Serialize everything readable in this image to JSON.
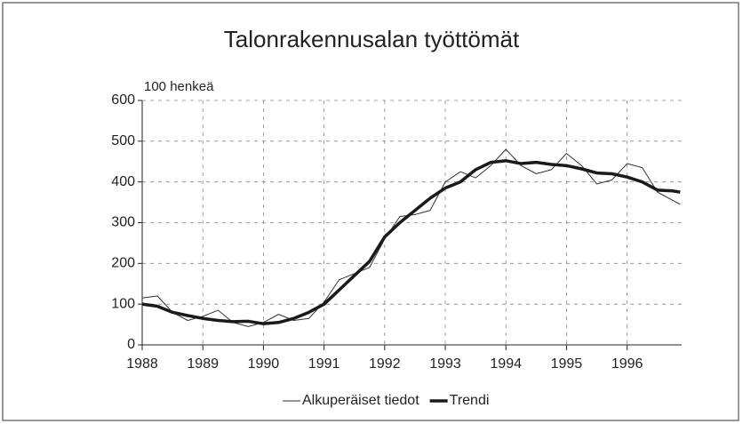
{
  "chart_data": {
    "type": "line",
    "title": "Talonrakennusalan työttömät",
    "y_axis_label": "100 henkeä",
    "x": [
      1988,
      1988.25,
      1988.5,
      1988.75,
      1989,
      1989.25,
      1989.5,
      1989.75,
      1990,
      1990.25,
      1990.5,
      1990.75,
      1991,
      1991.25,
      1991.5,
      1991.75,
      1992,
      1992.25,
      1992.5,
      1992.75,
      1993,
      1993.25,
      1993.5,
      1993.75,
      1994,
      1994.25,
      1994.5,
      1994.75,
      1995,
      1995.25,
      1995.5,
      1995.75,
      1996,
      1996.25,
      1996.5,
      1996.75,
      1996.875
    ],
    "series": [
      {
        "name": "Alkuperäiset tiedot",
        "color": "#333333",
        "line_width": 1,
        "values": [
          115,
          120,
          80,
          60,
          70,
          85,
          55,
          45,
          55,
          75,
          60,
          65,
          105,
          160,
          175,
          190,
          260,
          315,
          320,
          330,
          400,
          425,
          410,
          440,
          480,
          440,
          420,
          430,
          470,
          440,
          395,
          405,
          445,
          435,
          375,
          355,
          345
        ]
      },
      {
        "name": "Trendi",
        "color": "#1a1a1a",
        "line_width": 3.5,
        "values": [
          100,
          95,
          80,
          72,
          65,
          60,
          57,
          58,
          52,
          55,
          65,
          80,
          100,
          135,
          170,
          205,
          265,
          300,
          330,
          360,
          385,
          400,
          430,
          448,
          452,
          445,
          448,
          443,
          440,
          432,
          422,
          420,
          412,
          400,
          380,
          378,
          375
        ]
      }
    ],
    "xlim": [
      1988,
      1996.9
    ],
    "xticks": [
      1988,
      1989,
      1990,
      1991,
      1992,
      1993,
      1994,
      1995,
      1996
    ],
    "ylim": [
      0,
      600
    ],
    "yticks": [
      0,
      100,
      200,
      300,
      400,
      500,
      600
    ],
    "grid": true,
    "legend": "bottom"
  }
}
